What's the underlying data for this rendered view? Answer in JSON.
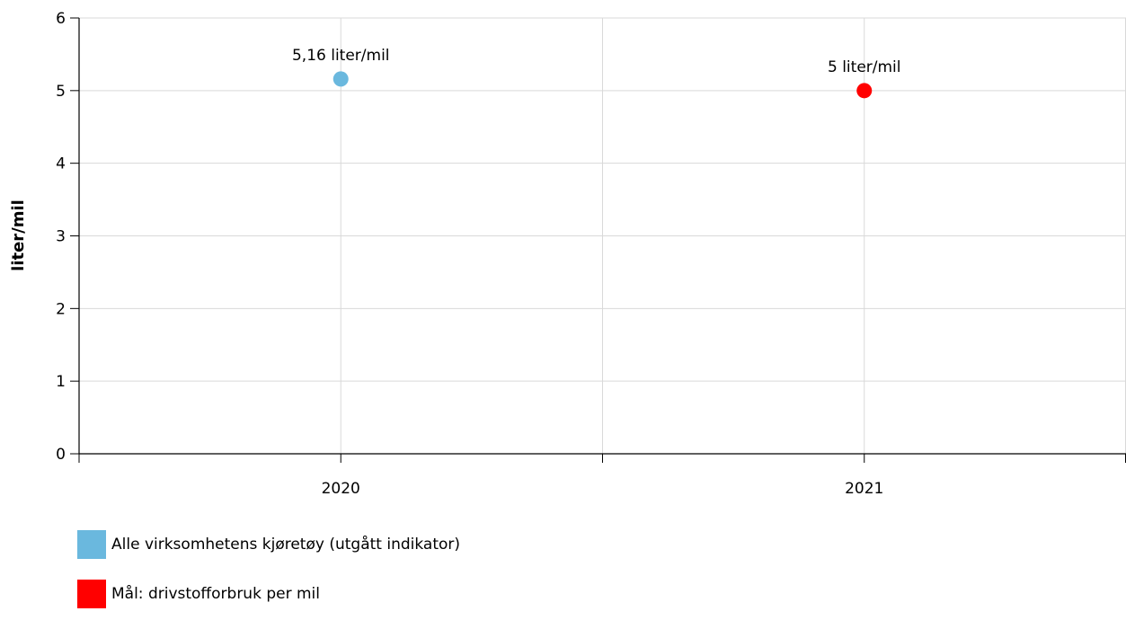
{
  "chart_data": {
    "type": "scatter",
    "categories": [
      "2020",
      "2021"
    ],
    "ylabel": "liter/mil",
    "ylim": [
      0,
      6
    ],
    "yticks": [
      0,
      1,
      2,
      3,
      4,
      5,
      6
    ],
    "grid": true,
    "legend_position": "bottom-left",
    "series": [
      {
        "name": "Alle virksomhetens kjøretøy (utgått indikator)",
        "color": "#6ab8de",
        "points": [
          {
            "x": "2020",
            "y": 5.16,
            "label": "5,16 liter/mil"
          }
        ]
      },
      {
        "name": "Mål: drivstofforbruk per mil",
        "color": "#ff0000",
        "points": [
          {
            "x": "2021",
            "y": 5.0,
            "label": "5 liter/mil"
          }
        ]
      }
    ]
  }
}
